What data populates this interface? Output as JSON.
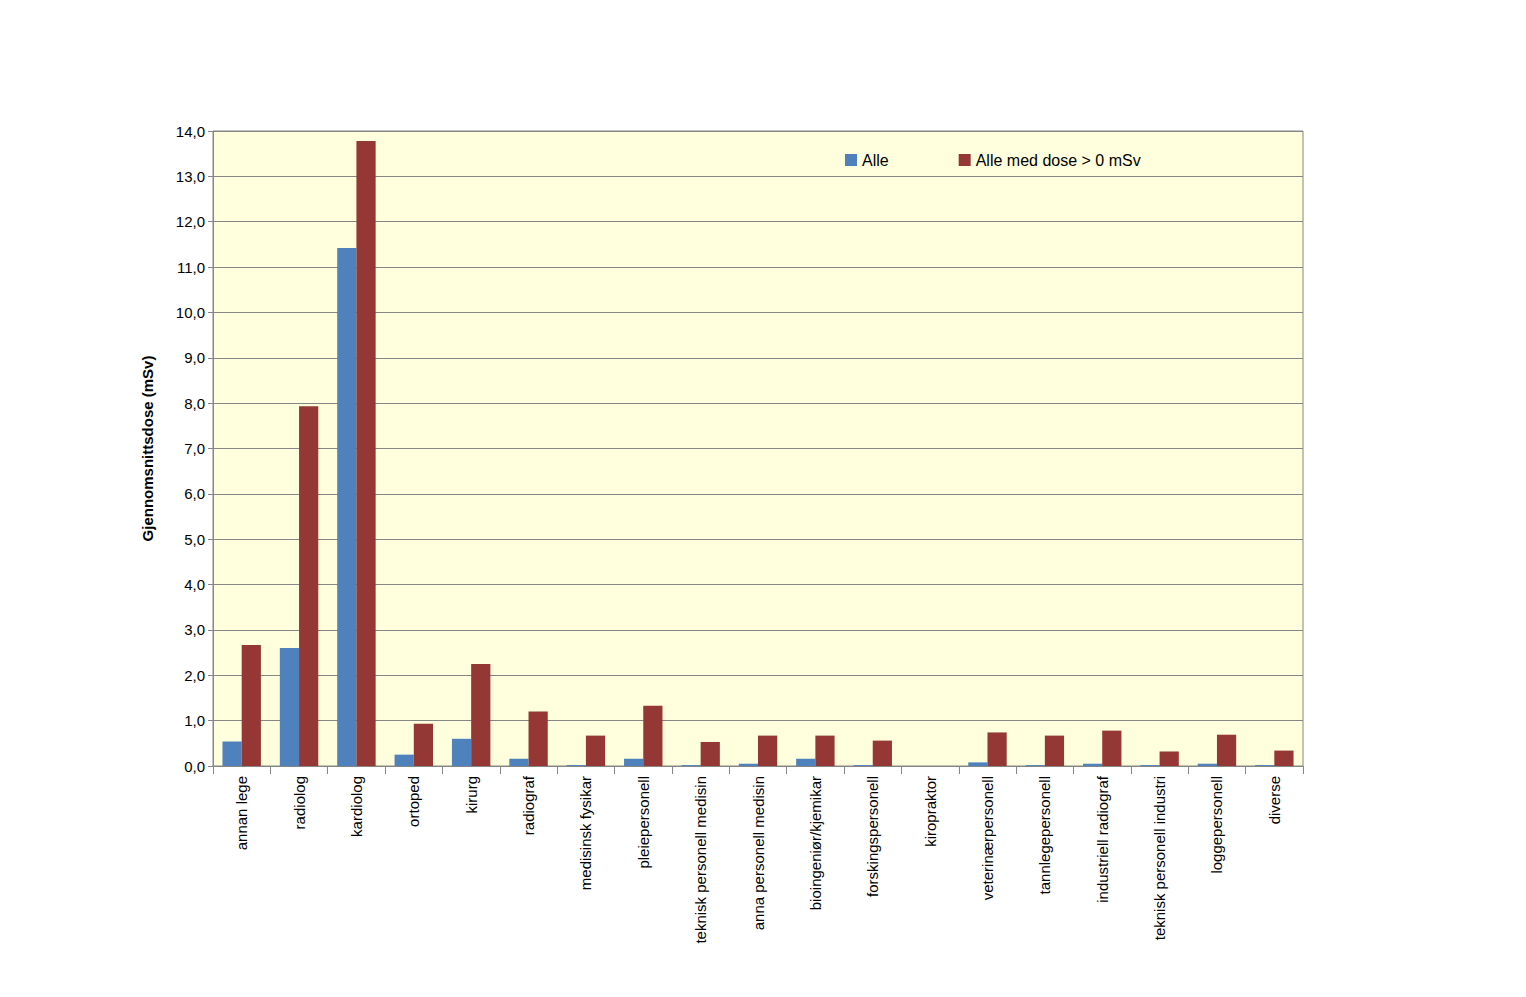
{
  "chart_data": {
    "type": "bar",
    "y_label": "Gjennomsnittsdose (mSv)",
    "categories": [
      "annan lege",
      "radiolog",
      "kardiolog",
      "ortoped",
      "kirurg",
      "radiograf",
      "medisinsk fysikar",
      "pleiepersonell",
      "teknisk personell medisin",
      "anna personell medisin",
      "bioingeniør/kjemikar",
      "forskingspersonell",
      "kiropraktor",
      "veterinærpersonell",
      "tannlegepersonell",
      "industriell radiograf",
      "teknisk personell industri",
      "loggepersonell",
      "diverse"
    ],
    "series": [
      {
        "name": "Alle",
        "color": "#4f81bd",
        "values": [
          0.54,
          2.6,
          11.42,
          0.25,
          0.6,
          0.16,
          0.02,
          0.16,
          0.02,
          0.05,
          0.16,
          0.02,
          0,
          0.08,
          0.02,
          0.05,
          0.02,
          0.05,
          0.02
        ]
      },
      {
        "name": "Alle med dose > 0 mSv",
        "color": "#953735",
        "values": [
          2.67,
          7.93,
          13.78,
          0.93,
          2.25,
          1.2,
          0.67,
          1.33,
          0.53,
          0.67,
          0.67,
          0.56,
          0,
          0.74,
          0.67,
          0.78,
          0.32,
          0.69,
          0.34
        ]
      }
    ],
    "ylim": [
      0,
      14
    ],
    "yticks": [
      {
        "value": 0,
        "label": "0,0"
      },
      {
        "value": 1,
        "label": "1,0"
      },
      {
        "value": 2,
        "label": "2,0"
      },
      {
        "value": 3,
        "label": "3,0"
      },
      {
        "value": 4,
        "label": "4,0"
      },
      {
        "value": 5,
        "label": "5,0"
      },
      {
        "value": 6,
        "label": "6,0"
      },
      {
        "value": 7,
        "label": "7,0"
      },
      {
        "value": 8,
        "label": "8,0"
      },
      {
        "value": 9,
        "label": "9,0"
      },
      {
        "value": 10,
        "label": "10,0"
      },
      {
        "value": 11,
        "label": "11,0"
      },
      {
        "value": 12,
        "label": "12,0"
      },
      {
        "value": 13,
        "label": "13,0"
      },
      {
        "value": 14,
        "label": "14,0"
      }
    ],
    "grid": true,
    "legend": "top-right"
  }
}
